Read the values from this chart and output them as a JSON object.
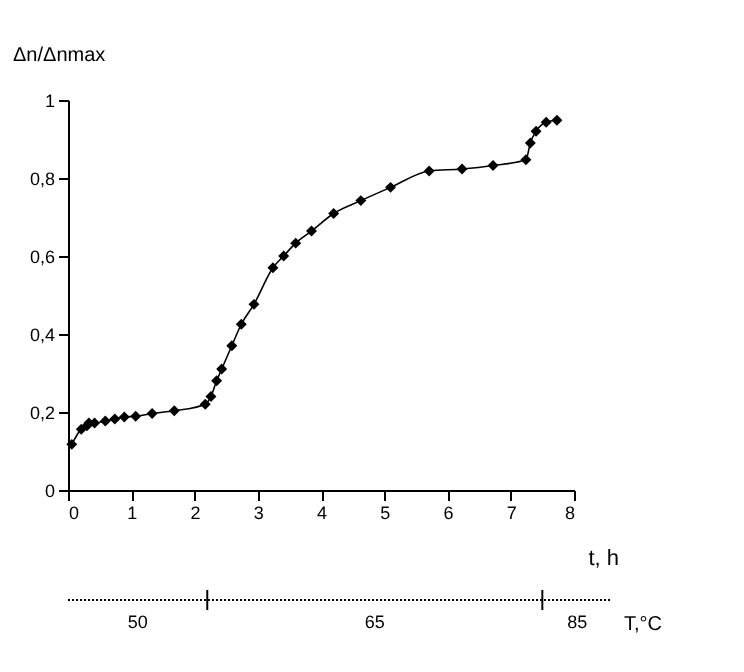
{
  "chart_data": {
    "type": "line",
    "xlabel": "t, h",
    "ylabel": "Δn/Δnmax",
    "annotations": [
      "50",
      "65",
      "85",
      "T,°C"
    ],
    "x": [
      0.06,
      0.21,
      0.3,
      0.33,
      0.42,
      0.59,
      0.74,
      0.89,
      1.07,
      1.33,
      1.68,
      2.17,
      2.26,
      2.35,
      2.43,
      2.59,
      2.74,
      2.94,
      3.24,
      3.41,
      3.6,
      3.85,
      4.2,
      4.63,
      5.1,
      5.71,
      6.23,
      6.72,
      7.24,
      7.31,
      7.4,
      7.56,
      7.73
    ],
    "series": [
      {
        "color": "#000000",
        "values": [
          0.117,
          0.156,
          0.165,
          0.172,
          0.172,
          0.177,
          0.182,
          0.187,
          0.189,
          0.196,
          0.203,
          0.22,
          0.24,
          0.28,
          0.31,
          0.37,
          0.425,
          0.476,
          0.57,
          0.6,
          0.633,
          0.664,
          0.709,
          0.742,
          0.776,
          0.818,
          0.823,
          0.832,
          0.847,
          0.89,
          0.92,
          0.943,
          0.948
        ]
      }
    ],
    "marker": "diamond",
    "line_style": "solid",
    "xlim": [
      0,
      8
    ],
    "xticks": [
      0,
      1,
      2,
      3,
      4,
      5,
      6,
      7,
      8
    ],
    "ylim": [
      0,
      1
    ],
    "yticks": [
      0,
      {
        "value": 0.2,
        "label": "0,2"
      },
      {
        "value": 0.4,
        "label": "0,4"
      },
      {
        "value": 0.6,
        "label": "0,6"
      },
      {
        "value": 0.8,
        "label": "0,8"
      },
      1
    ],
    "grid": false
  }
}
